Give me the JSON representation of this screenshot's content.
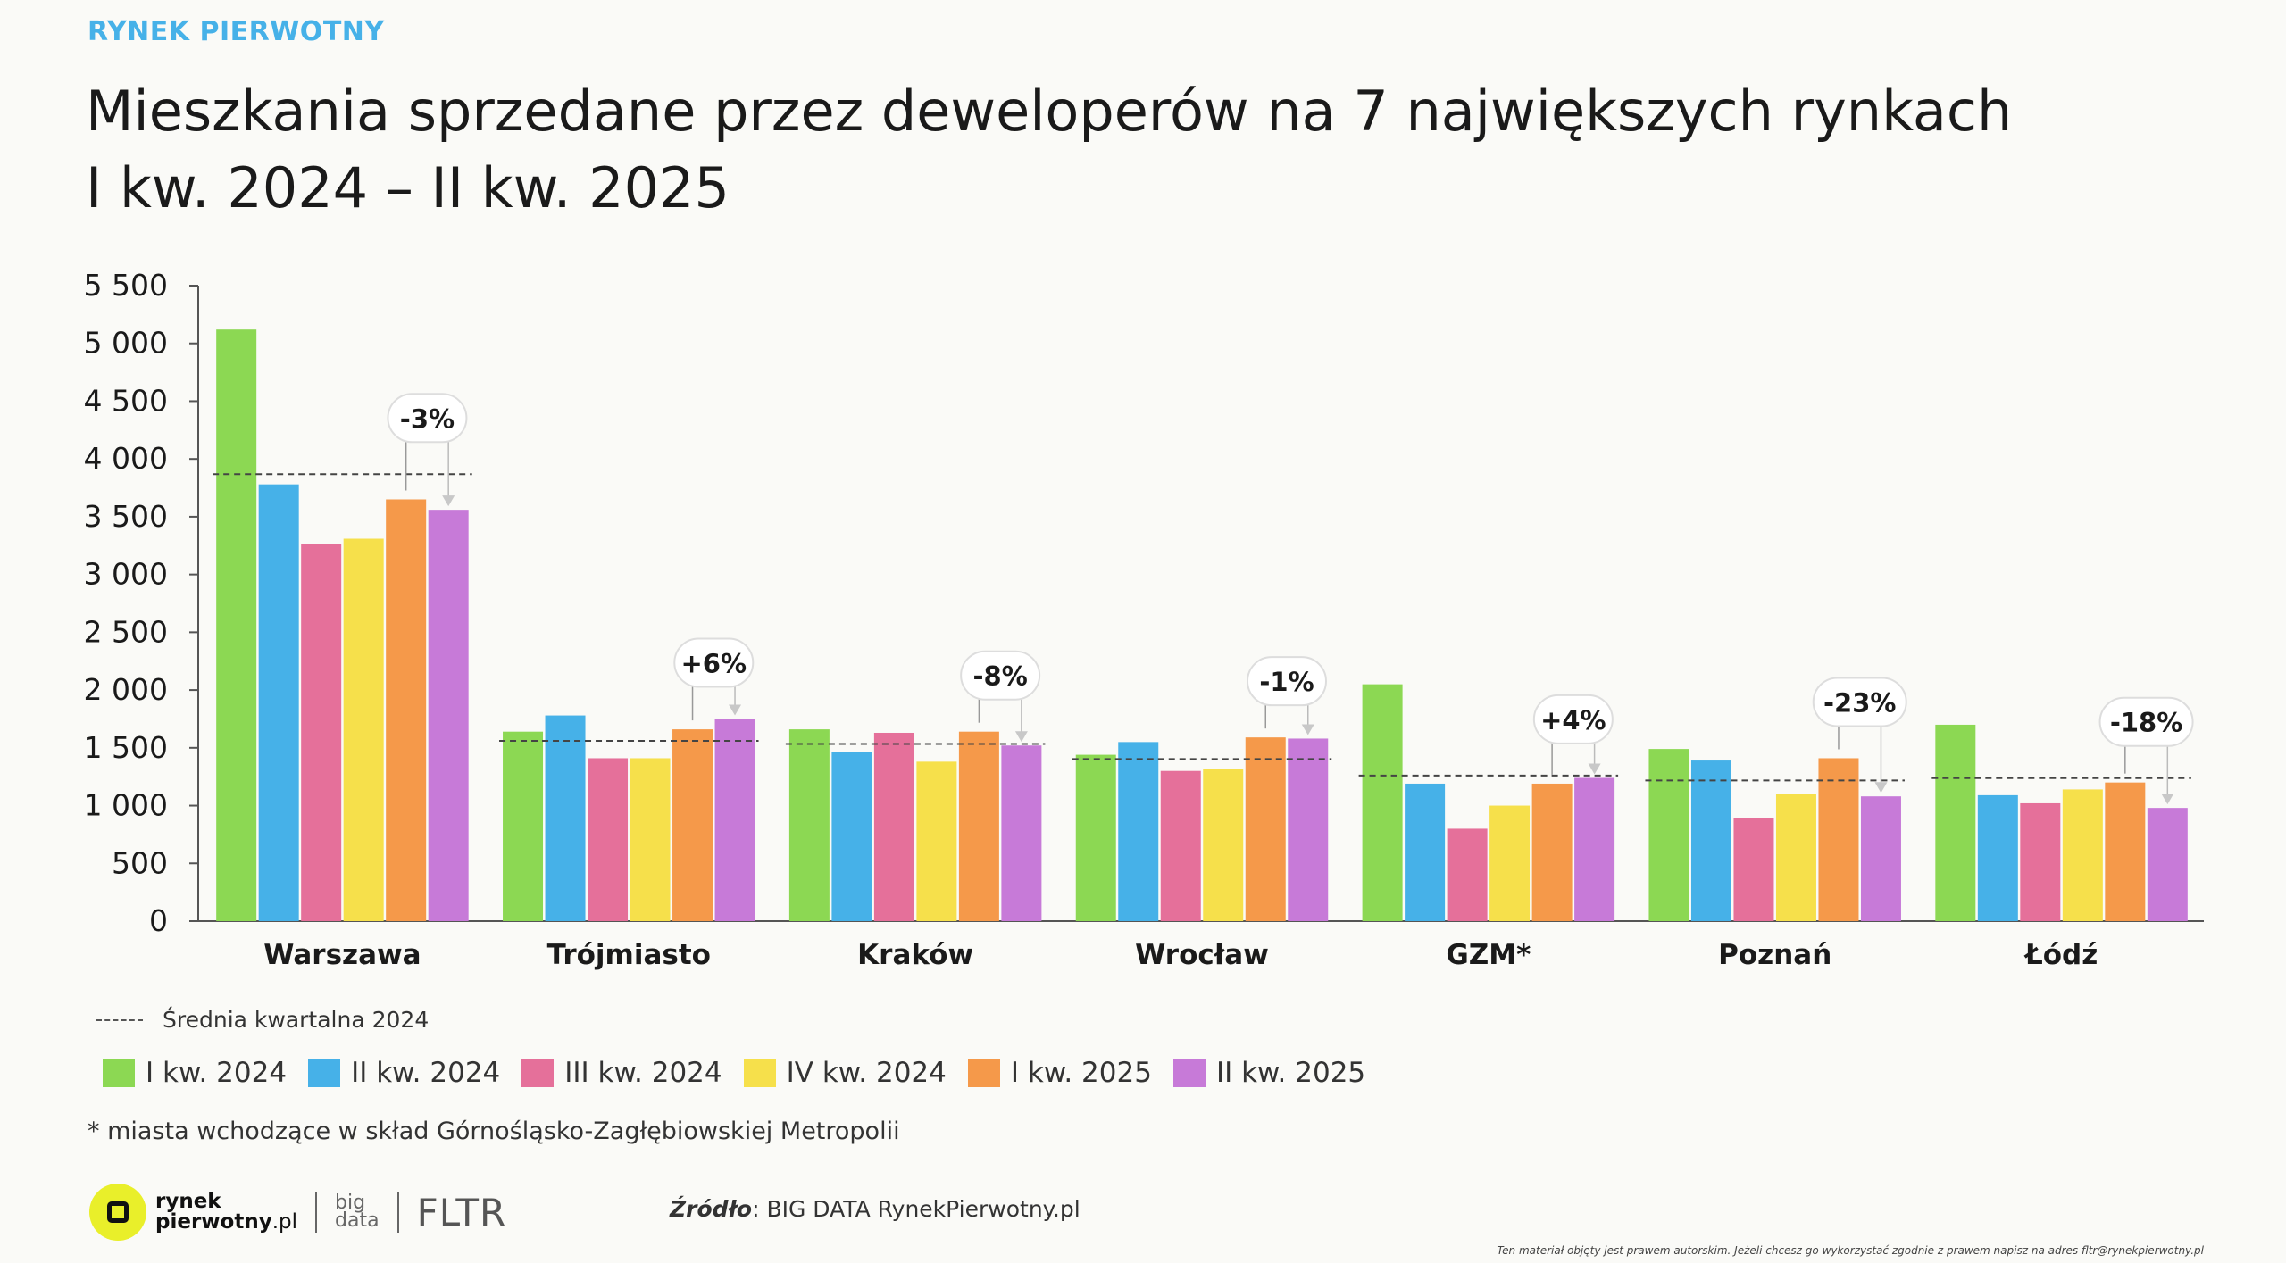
{
  "kicker": "RYNEK PIERWOTNY",
  "title_line1": "Mieszkania sprzedane przez deweloperów na 7 największych rynkach",
  "title_line2": "I kw. 2024 – II kw. 2025",
  "avg_legend": "Średnia kwartalna 2024",
  "footnote": "* miasta wchodzące w skład Górnośląsko-Zagłębiowskiej Metropolii",
  "logo": {
    "name_line1": "rynek",
    "name_line2": "pierwotny",
    "name_suffix": ".pl",
    "big_line1": "big",
    "big_line2": "data",
    "fltr": "FLTR"
  },
  "source": {
    "label": "Źródło",
    "text": ": BIG DATA RynekPierwotny.pl"
  },
  "copyright": "Ten materiał objęty jest prawem autorskim. Jeżeli chcesz go wykorzystać zgodnie z prawem napisz na adres fltr@rynekpierwotny.pl",
  "chart_data": {
    "type": "bar",
    "categories": [
      "Warszawa",
      "Trójmiasto",
      "Kraków",
      "Wrocław",
      "GZM*",
      "Poznań",
      "Łódź"
    ],
    "series": [
      {
        "name": "I kw. 2024",
        "color": "#8cd853",
        "values": [
          5120,
          1640,
          1660,
          1440,
          2050,
          1490,
          1700
        ]
      },
      {
        "name": "II kw. 2024",
        "color": "#46b1e8",
        "values": [
          3780,
          1780,
          1460,
          1550,
          1190,
          1390,
          1090
        ]
      },
      {
        "name": "III kw. 2024",
        "color": "#e5709a",
        "values": [
          3260,
          1410,
          1630,
          1300,
          800,
          890,
          1020
        ]
      },
      {
        "name": "IV kw. 2024",
        "color": "#f6e04b",
        "values": [
          3310,
          1410,
          1380,
          1320,
          1000,
          1100,
          1140
        ]
      },
      {
        "name": "I kw. 2025",
        "color": "#f5994a",
        "values": [
          3650,
          1660,
          1640,
          1590,
          1190,
          1410,
          1200
        ]
      },
      {
        "name": "II kw. 2025",
        "color": "#c77ad8",
        "values": [
          3560,
          1750,
          1520,
          1580,
          1240,
          1080,
          980
        ]
      }
    ],
    "average_2024": [
      3868,
      1560,
      1533,
      1403,
      1260,
      1218,
      1238
    ],
    "change_labels": [
      "-3%",
      "+6%",
      "-8%",
      "-1%",
      "+4%",
      "-23%",
      "-18%"
    ],
    "y_ticks": [
      "0",
      "500",
      "1 000",
      "1 500",
      "2 000",
      "2 500",
      "3 000",
      "3 500",
      "4 000",
      "4 500",
      "5 000",
      "5 500"
    ],
    "ylim": [
      0,
      5500
    ],
    "xlabel": "",
    "ylabel": "",
    "grid": false,
    "legend_position": "bottom-left"
  }
}
